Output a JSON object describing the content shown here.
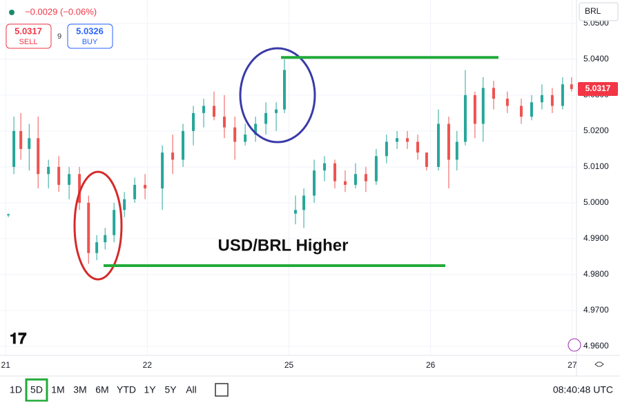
{
  "header": {
    "change": "−0.0029 (−0.06%)",
    "sell_price": "5.0317",
    "sell_label": "SELL",
    "spread": "9",
    "buy_price": "5.0326",
    "buy_label": "BUY",
    "currency": "BRL"
  },
  "chart_data": {
    "type": "candlestick",
    "annotation": "USD/BRL Higher",
    "up_color": "#26a69a",
    "down_color": "#ef5350",
    "level_color": "#22aa3a",
    "levels": [
      5.0405,
      4.9825
    ],
    "xlim": [
      -0.04,
      4.03
    ],
    "xticks": [
      {
        "value": 0,
        "label": "21"
      },
      {
        "value": 1,
        "label": "22"
      },
      {
        "value": 2,
        "label": "25"
      },
      {
        "value": 3,
        "label": "26"
      },
      {
        "value": 4,
        "label": "27"
      }
    ],
    "ylim": [
      4.9575,
      5.0565
    ],
    "yticks": [
      {
        "value": 4.96,
        "label": "4.9600"
      },
      {
        "value": 4.97,
        "label": "4.9700"
      },
      {
        "value": 4.98,
        "label": "4.9800"
      },
      {
        "value": 4.99,
        "label": "4.9900"
      },
      {
        "value": 5.0,
        "label": "5.0000"
      },
      {
        "value": 5.01,
        "label": "5.0100"
      },
      {
        "value": 5.02,
        "label": "5.0200"
      },
      {
        "value": 5.03,
        "label": "5.0300"
      },
      {
        "value": 5.04,
        "label": "5.0400"
      },
      {
        "value": 5.05,
        "label": "5.0500"
      }
    ],
    "x": [
      0.019,
      0.058,
      0.107,
      0.166,
      0.229,
      0.302,
      0.375,
      0.448,
      0.521,
      0.585,
      0.643,
      0.702,
      0.765,
      0.838,
      0.911,
      0.984,
      1.106,
      1.179,
      1.252,
      1.325,
      1.398,
      1.471,
      1.544,
      1.618,
      1.691,
      1.764,
      1.837,
      1.91,
      1.968,
      2.046,
      2.105,
      2.178,
      2.251,
      2.324,
      2.397,
      2.47,
      2.543,
      2.616,
      2.689,
      2.763,
      2.836,
      2.909,
      2.972,
      3.055,
      3.128,
      3.186,
      3.245,
      3.313,
      3.371,
      3.445,
      3.542,
      3.64,
      3.713,
      3.786,
      3.859,
      3.932,
      3.995
    ],
    "open": [
      4.9965,
      5.01,
      5.02,
      5.015,
      5.018,
      5.008,
      5.01,
      5.005,
      5.008,
      5.0,
      4.986,
      4.989,
      4.991,
      4.998,
      5.001,
      5.005,
      5.004,
      5.014,
      5.012,
      5.02,
      5.025,
      5.027,
      5.024,
      5.021,
      5.017,
      5.019,
      5.022,
      5.025,
      5.026,
      4.997,
      4.998,
      5.002,
      5.009,
      5.011,
      5.006,
      5.005,
      5.008,
      5.006,
      5.013,
      5.017,
      5.018,
      5.017,
      5.014,
      5.01,
      5.022,
      5.012,
      5.017,
      5.03,
      5.022,
      5.032,
      5.029,
      5.027,
      5.024,
      5.028,
      5.03,
      5.027,
      5.033
    ],
    "high": [
      4.997,
      5.024,
      5.025,
      5.022,
      5.024,
      5.012,
      5.013,
      5.01,
      5.01,
      5.002,
      4.991,
      4.993,
      5.0,
      5.003,
      5.007,
      5.008,
      5.016,
      5.019,
      5.022,
      5.027,
      5.029,
      5.031,
      5.03,
      5.024,
      5.022,
      5.024,
      5.028,
      5.028,
      5.04,
      5.002,
      5.004,
      5.012,
      5.013,
      5.012,
      5.009,
      5.011,
      5.01,
      5.015,
      5.019,
      5.02,
      5.02,
      5.019,
      5.014,
      5.026,
      5.024,
      5.02,
      5.037,
      5.031,
      5.035,
      5.034,
      5.031,
      5.029,
      5.03,
      5.033,
      5.032,
      5.035,
      5.035
    ],
    "low": [
      4.996,
      5.008,
      5.012,
      5.009,
      5.004,
      5.004,
      5.003,
      5.001,
      4.998,
      4.983,
      4.984,
      4.987,
      4.989,
      4.996,
      5.0,
      5.001,
      4.998,
      5.008,
      5.01,
      5.016,
      5.021,
      5.023,
      5.018,
      5.012,
      5.016,
      5.017,
      5.019,
      5.02,
      5.025,
      4.994,
      4.993,
      5.0,
      5.006,
      5.004,
      5.003,
      5.004,
      5.003,
      5.005,
      5.011,
      5.015,
      5.015,
      5.012,
      5.009,
      5.009,
      5.004,
      5.009,
      5.016,
      5.018,
      5.017,
      5.026,
      5.025,
      5.022,
      5.023,
      5.026,
      5.025,
      5.026,
      5.031
    ],
    "close": [
      4.9968,
      5.02,
      5.015,
      5.018,
      5.008,
      5.01,
      5.005,
      5.008,
      5.0,
      4.986,
      4.989,
      4.991,
      4.998,
      5.001,
      5.005,
      5.004,
      5.014,
      5.012,
      5.02,
      5.025,
      5.027,
      5.024,
      5.021,
      5.017,
      5.019,
      5.022,
      5.025,
      5.026,
      5.037,
      4.998,
      5.002,
      5.009,
      5.011,
      5.006,
      5.005,
      5.008,
      5.006,
      5.013,
      5.017,
      5.018,
      5.017,
      5.014,
      5.01,
      5.022,
      5.012,
      5.017,
      5.03,
      5.022,
      5.032,
      5.029,
      5.027,
      5.024,
      5.028,
      5.03,
      5.027,
      5.033,
      5.0317
    ]
  },
  "toolbar": {
    "ranges": [
      "1D",
      "5D",
      "1M",
      "3M",
      "6M",
      "YTD",
      "1Y",
      "5Y",
      "All"
    ],
    "active": 1,
    "time": "08:40:48 UTC"
  }
}
